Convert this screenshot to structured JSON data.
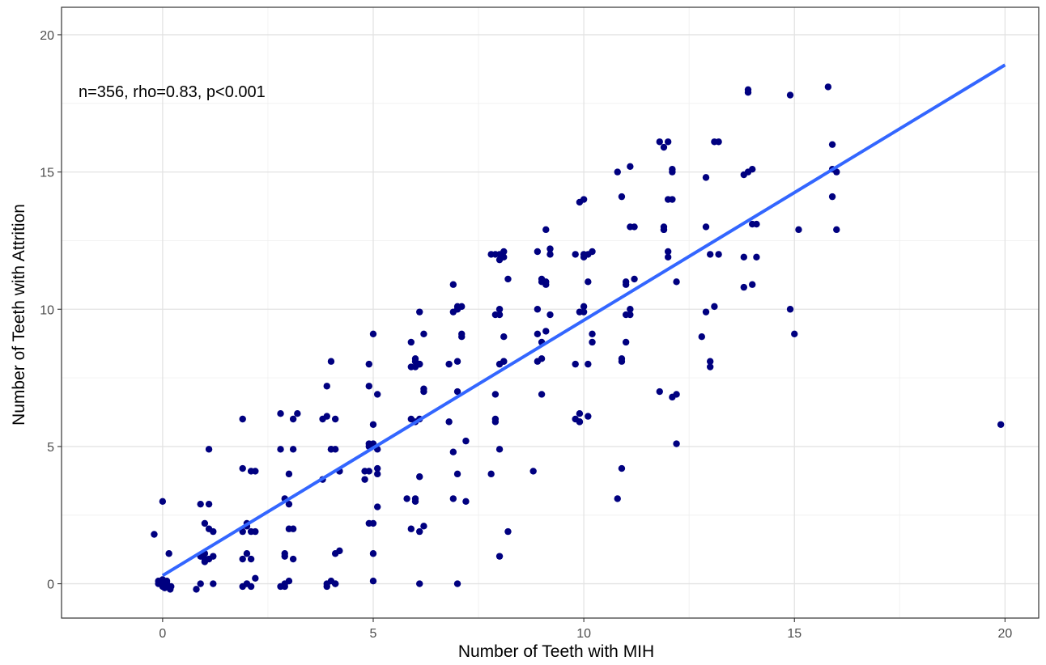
{
  "chart_data": {
    "type": "scatter",
    "xlabel": "Number of Teeth with MIH",
    "ylabel": "Number of Teeth with Attrition",
    "annotation": "n=356, rho=0.83, p<0.001",
    "xlim": [
      -2.4,
      20.8
    ],
    "ylim": [
      -1.25,
      21.0
    ],
    "x_ticks": [
      0,
      5,
      10,
      15,
      20
    ],
    "y_ticks": [
      0,
      5,
      10,
      15,
      20
    ],
    "x_tick_labels": [
      "0",
      "5",
      "10",
      "15",
      "20"
    ],
    "y_tick_labels": [
      "0",
      "5",
      "10",
      "15",
      "20"
    ],
    "grid": true,
    "point_color": "#000080",
    "line_color": "#3366FF",
    "regression": {
      "x": [
        0,
        20
      ],
      "y": [
        0.3,
        18.9
      ]
    },
    "points": {
      "x": [
        -0.2,
        0.0,
        -0.1,
        0.1,
        0.0,
        -0.1,
        0.2,
        0.1,
        0.0,
        0.05,
        -0.05,
        0.15,
        0.18,
        0.0,
        0.1,
        0.9,
        1.1,
        1.2,
        0.9,
        1.0,
        1.1,
        1.0,
        1.2,
        0.8,
        1.0,
        1.1,
        1.2,
        1.1,
        1.0,
        0.9,
        1.9,
        2.1,
        2.2,
        2.0,
        2.1,
        1.9,
        2.0,
        2.2,
        2.0,
        1.9,
        2.1,
        2.0,
        1.9,
        2.1,
        2.2,
        2.0,
        1.9,
        2.8,
        3.1,
        2.9,
        3.0,
        3.1,
        2.9,
        3.0,
        2.8,
        3.1,
        3.2,
        2.9,
        3.0,
        2.9,
        3.1,
        2.8,
        2.9,
        3.0,
        3.9,
        4.1,
        4.0,
        3.9,
        4.1,
        4.2,
        3.8,
        4.0,
        4.1,
        4.2,
        3.9,
        4.0,
        3.8,
        4.1,
        3.9,
        4.2,
        4.0,
        4.1,
        4.9,
        5.0,
        4.8,
        5.0,
        4.9,
        5.1,
        5.0,
        4.9,
        5.0,
        5.1,
        4.8,
        5.0,
        4.9,
        4.9,
        5.1,
        5.1,
        4.9,
        5.0,
        5.1,
        5.9,
        6.1,
        6.0,
        6.1,
        5.9,
        6.2,
        6.0,
        6.1,
        5.9,
        6.0,
        6.1,
        6.2,
        6.1,
        6.0,
        6.2,
        5.8,
        6.0,
        6.1,
        6.0,
        5.9,
        6.1,
        6.2,
        6.9,
        7.0,
        7.1,
        6.8,
        7.0,
        6.9,
        7.2,
        7.0,
        7.1,
        6.9,
        7.0,
        6.8,
        7.1,
        7.0,
        6.9,
        7.2,
        7.0,
        7.8,
        8.0,
        8.1,
        7.9,
        8.0,
        8.2,
        7.9,
        8.0,
        8.1,
        7.9,
        8.0,
        8.1,
        7.8,
        8.0,
        7.9,
        8.2,
        8.1,
        7.9,
        8.0,
        8.1,
        8.0,
        8.9,
        9.1,
        9.0,
        9.2,
        8.9,
        9.0,
        9.1,
        8.9,
        9.2,
        9.0,
        8.9,
        9.1,
        9.0,
        9.2,
        8.8,
        9.0,
        9.1,
        9.8,
        10.0,
        10.1,
        9.9,
        10.2,
        10.0,
        9.9,
        10.1,
        10.0,
        9.8,
        10.2,
        9.9,
        10.0,
        10.1,
        9.9,
        10.2,
        9.8,
        10.0,
        10.1,
        9.9,
        10.8,
        11.0,
        11.1,
        10.9,
        11.2,
        11.0,
        10.9,
        11.1,
        11.0,
        10.8,
        11.2,
        11.1,
        10.9,
        11.0,
        11.1,
        10.9,
        11.8,
        12.0,
        12.1,
        11.9,
        12.2,
        12.0,
        11.9,
        12.1,
        12.0,
        11.8,
        12.2,
        12.1,
        11.9,
        12.0,
        12.1,
        12.2,
        11.9,
        12.8,
        13.0,
        13.1,
        12.9,
        13.2,
        13.0,
        12.9,
        13.1,
        13.0,
        13.2,
        12.9,
        13.8,
        14.0,
        14.1,
        13.9,
        13.8,
        14.0,
        13.9,
        14.1,
        13.8,
        14.0,
        13.9,
        14.9,
        15.0,
        15.1,
        14.9,
        15.8,
        15.9,
        16.0,
        15.9,
        16.0,
        15.9,
        19.9
      ],
      "y": [
        1.8,
        0.0,
        0.1,
        0.0,
        -0.1,
        0.0,
        -0.1,
        0.1,
        3.0,
        -0.15,
        0.05,
        1.1,
        -0.2,
        0.15,
        0.0,
        0.0,
        0.9,
        1.0,
        2.9,
        0.9,
        2.0,
        1.1,
        1.9,
        -0.2,
        2.2,
        4.9,
        0.0,
        2.9,
        0.8,
        1.0,
        6.0,
        4.1,
        4.1,
        0.0,
        -0.1,
        0.9,
        0.0,
        0.2,
        1.1,
        4.2,
        1.9,
        2.1,
        1.9,
        0.9,
        1.9,
        2.2,
        -0.1,
        -0.1,
        6.0,
        3.1,
        2.0,
        2.0,
        1.1,
        0.1,
        4.9,
        0.9,
        6.2,
        0.0,
        2.9,
        1.0,
        4.9,
        6.2,
        -0.1,
        4.0,
        0.0,
        6.0,
        8.1,
        7.2,
        0.0,
        4.1,
        6.0,
        0.1,
        4.9,
        4.1,
        -0.1,
        4.9,
        3.8,
        0.0,
        6.1,
        1.2,
        4.9,
        1.1,
        2.2,
        9.1,
        3.8,
        2.2,
        7.2,
        4.9,
        5.1,
        8.0,
        5.8,
        6.9,
        4.1,
        0.1,
        4.1,
        5.1,
        4.0,
        2.8,
        5.0,
        1.1,
        4.2,
        2.0,
        8.0,
        3.0,
        9.9,
        7.9,
        9.1,
        8.1,
        1.9,
        8.8,
        7.9,
        6.0,
        7.1,
        3.9,
        3.1,
        2.1,
        3.1,
        5.9,
        0.0,
        8.2,
        6.0,
        8.0,
        7.0,
        10.9,
        10.1,
        10.1,
        5.9,
        10.0,
        4.8,
        3.0,
        8.1,
        9.1,
        9.9,
        7.0,
        8.0,
        9.0,
        0.0,
        3.1,
        5.2,
        4.0,
        12.0,
        12.0,
        11.9,
        9.8,
        11.8,
        11.1,
        12.0,
        8.0,
        12.1,
        6.0,
        4.9,
        8.1,
        4.0,
        1.0,
        6.9,
        1.9,
        9.0,
        5.9,
        10.0,
        8.1,
        9.8,
        9.1,
        11.0,
        11.0,
        12.2,
        12.1,
        8.8,
        9.2,
        8.1,
        9.8,
        11.1,
        10.0,
        12.9,
        8.2,
        12.0,
        4.1,
        6.9,
        10.9,
        12.0,
        14.0,
        12.0,
        9.9,
        12.1,
        10.1,
        6.2,
        11.0,
        11.9,
        8.0,
        9.1,
        5.9,
        9.9,
        8.0,
        13.9,
        8.8,
        6.0,
        12.0,
        6.1,
        5.9,
        15.0,
        10.9,
        15.2,
        14.1,
        11.1,
        11.0,
        8.2,
        10.0,
        9.8,
        3.1,
        13.0,
        13.0,
        8.1,
        8.8,
        9.8,
        4.2,
        16.1,
        16.1,
        15.1,
        12.9,
        11.0,
        14.0,
        15.9,
        14.0,
        12.1,
        7.0,
        6.9,
        15.0,
        12.9,
        11.9,
        6.8,
        5.1,
        13.0,
        9.0,
        12.0,
        16.1,
        14.8,
        16.1,
        8.1,
        13.0,
        10.1,
        7.9,
        12.0,
        9.9,
        11.9,
        15.1,
        11.9,
        18.0,
        14.9,
        10.9,
        17.9,
        13.1,
        10.8,
        13.1,
        15.0,
        10.0,
        9.1,
        12.9,
        17.8,
        18.1,
        14.1,
        15.0,
        16.0,
        12.9,
        15.1,
        5.8
      ]
    }
  }
}
